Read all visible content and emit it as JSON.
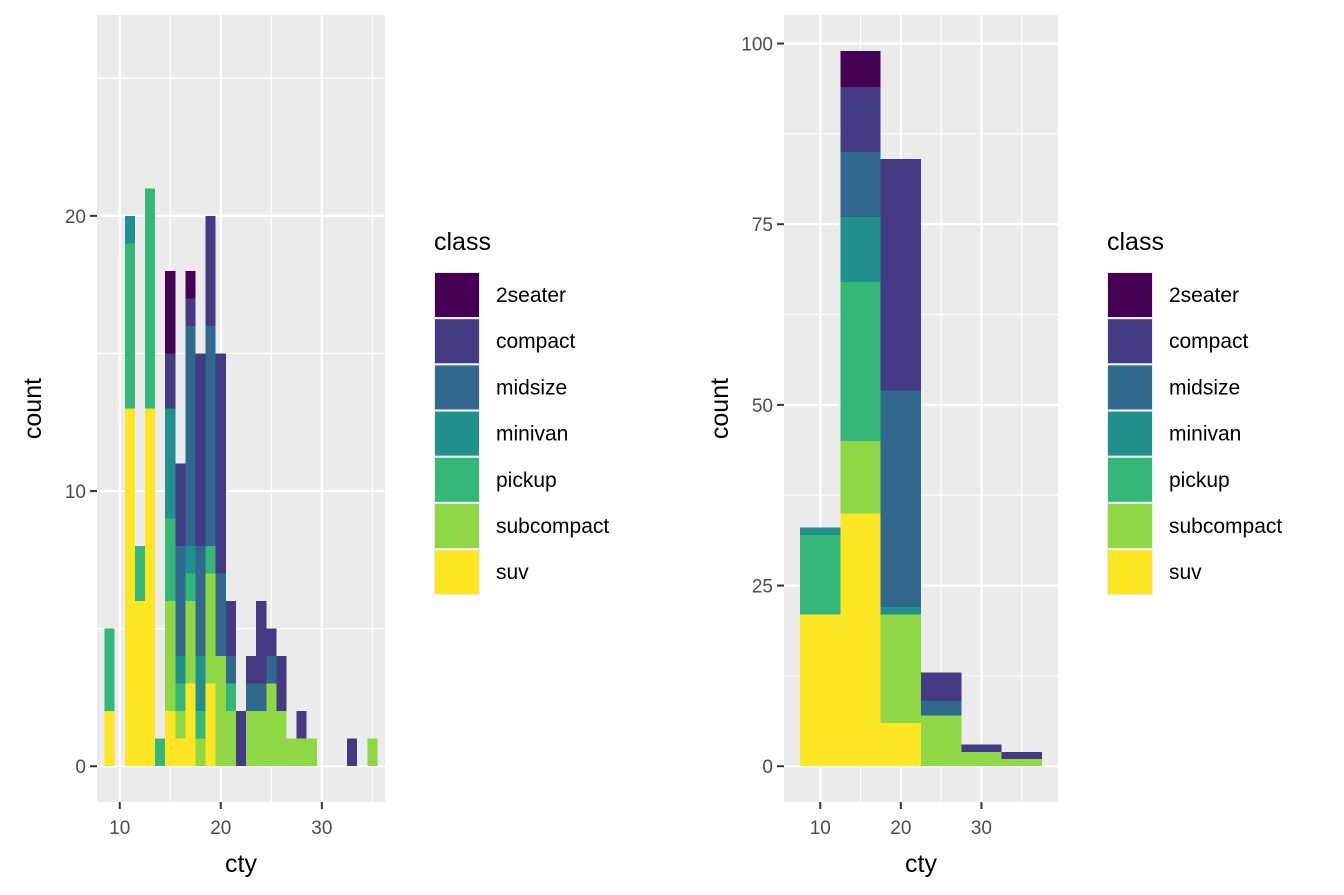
{
  "chart_data": [
    {
      "type": "bar",
      "stacked": true,
      "xlabel": "cty",
      "ylabel": "count",
      "xlim": [
        7.75,
        36.25
      ],
      "ylim": [
        -1.3,
        27.3
      ],
      "x_ticks": [
        10,
        20,
        30
      ],
      "y_ticks": [
        0,
        10,
        20
      ],
      "bin_width": 1,
      "categories": [
        9,
        11,
        12,
        13,
        14,
        15,
        16,
        17,
        18,
        19,
        20,
        21,
        22,
        23,
        24,
        25,
        26,
        27,
        28,
        29,
        33,
        35
      ],
      "series": [
        {
          "name": "2seater",
          "values": [
            0,
            0,
            0,
            0,
            0,
            3,
            0,
            1,
            0,
            0,
            0,
            0,
            0,
            0,
            0,
            0,
            0,
            0,
            0,
            0,
            0,
            0
          ]
        },
        {
          "name": "compact",
          "values": [
            0,
            0,
            0,
            0,
            0,
            2,
            3,
            1,
            7,
            4,
            8,
            2,
            2,
            1,
            3,
            1,
            2,
            0,
            1,
            0,
            1,
            0
          ]
        },
        {
          "name": "midsize",
          "values": [
            0,
            0,
            0,
            0,
            0,
            0,
            4,
            8,
            4,
            8,
            3,
            1,
            0,
            1,
            1,
            1,
            0,
            0,
            0,
            0,
            0,
            0
          ]
        },
        {
          "name": "minivan",
          "values": [
            0,
            1,
            0,
            0,
            0,
            4,
            1,
            1,
            2,
            0,
            0,
            0,
            0,
            0,
            0,
            0,
            0,
            0,
            0,
            0,
            0,
            0
          ]
        },
        {
          "name": "pickup",
          "values": [
            3,
            6,
            2,
            8,
            1,
            3,
            1,
            1,
            1,
            1,
            0,
            1,
            0,
            0,
            0,
            0,
            0,
            0,
            0,
            0,
            0,
            0
          ]
        },
        {
          "name": "subcompact",
          "values": [
            0,
            0,
            0,
            0,
            0,
            4,
            1,
            3,
            1,
            4,
            4,
            2,
            0,
            2,
            2,
            3,
            2,
            1,
            1,
            1,
            0,
            1
          ]
        },
        {
          "name": "suv",
          "values": [
            2,
            13,
            6,
            13,
            0,
            2,
            1,
            3,
            0,
            3,
            0,
            0,
            0,
            0,
            0,
            0,
            0,
            0,
            0,
            0,
            0,
            0
          ]
        }
      ],
      "legend": {
        "title": "class",
        "position": "right"
      },
      "grid": true
    },
    {
      "type": "bar",
      "stacked": true,
      "xlabel": "cty",
      "ylabel": "count",
      "xlim": [
        5.5,
        39.5
      ],
      "ylim": [
        -4.95,
        103.95
      ],
      "x_ticks": [
        10,
        20,
        30
      ],
      "y_ticks": [
        0,
        25,
        50,
        75,
        100
      ],
      "bin_width": 5,
      "categories": [
        10,
        15,
        20,
        25,
        30,
        35
      ],
      "series": [
        {
          "name": "2seater",
          "values": [
            0,
            5,
            0,
            0,
            0,
            0
          ]
        },
        {
          "name": "compact",
          "values": [
            0,
            9,
            32,
            4,
            1,
            1
          ]
        },
        {
          "name": "midsize",
          "values": [
            0,
            9,
            30,
            2,
            0,
            0
          ]
        },
        {
          "name": "minivan",
          "values": [
            1,
            9,
            1,
            0,
            0,
            0
          ]
        },
        {
          "name": "pickup",
          "values": [
            11,
            22,
            0,
            0,
            0,
            0
          ]
        },
        {
          "name": "subcompact",
          "values": [
            0,
            10,
            15,
            7,
            2,
            1
          ]
        },
        {
          "name": "suv",
          "values": [
            21,
            35,
            6,
            0,
            0,
            0
          ]
        }
      ],
      "legend": {
        "title": "class",
        "position": "right"
      },
      "grid": true
    }
  ],
  "legend": {
    "title": "class",
    "items": [
      {
        "name": "2seater",
        "color": "#440154"
      },
      {
        "name": "compact",
        "color": "#443A83"
      },
      {
        "name": "midsize",
        "color": "#31688E"
      },
      {
        "name": "minivan",
        "color": "#21908C"
      },
      {
        "name": "pickup",
        "color": "#35B779"
      },
      {
        "name": "subcompact",
        "color": "#8FD744"
      },
      {
        "name": "suv",
        "color": "#FDE725"
      }
    ]
  },
  "colors": {
    "panel_background": "#EBEBEB",
    "grid_line": "#FFFFFF",
    "tick_text": "#4D4D4D",
    "tick_mark": "#333333"
  }
}
